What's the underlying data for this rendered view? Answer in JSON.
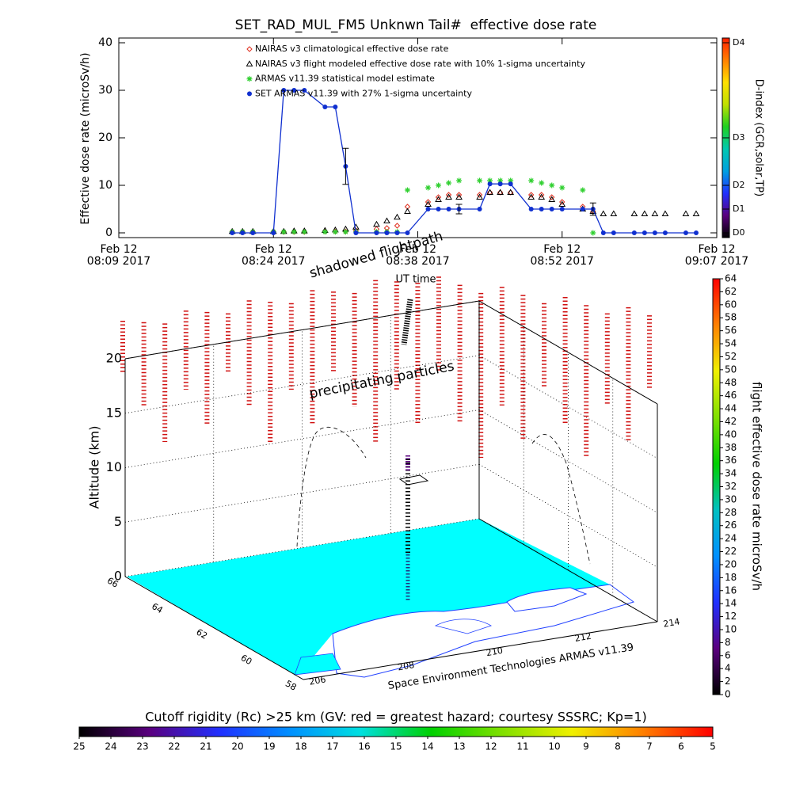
{
  "chart_data": [
    {
      "type": "line",
      "title": "SET_RAD_MUL_FM5 Unknwn Tail#  effective dose rate",
      "ylabel": "Effective dose rate (microSv/h)",
      "xlabel": "UT time",
      "xlim": [
        "2017-02-12 08:09",
        "2017-02-12 09:07"
      ],
      "xticks": [
        {
          "value": "2017-02-12 08:09",
          "label": [
            "Feb 12",
            "08:09 2017"
          ]
        },
        {
          "value": "2017-02-12 08:24",
          "label": [
            "Feb 12",
            "08:24 2017"
          ]
        },
        {
          "value": "2017-02-12 08:38",
          "label": [
            "Feb 12",
            "08:38 2017"
          ]
        },
        {
          "value": "2017-02-12 08:52",
          "label": [
            "Feb 12",
            "08:52 2017"
          ]
        },
        {
          "value": "2017-02-12 09:07",
          "label": [
            "Feb 12",
            "09:07 2017"
          ]
        }
      ],
      "ylim": [
        -1,
        41
      ],
      "yticks": [
        0,
        10,
        20,
        30,
        40
      ],
      "x": [
        "2017-02-12 08:20",
        "2017-02-12 08:21",
        "2017-02-12 08:22",
        "2017-02-12 08:24",
        "2017-02-12 08:25",
        "2017-02-12 08:26",
        "2017-02-12 08:27",
        "2017-02-12 08:29",
        "2017-02-12 08:30",
        "2017-02-12 08:31",
        "2017-02-12 08:32",
        "2017-02-12 08:34",
        "2017-02-12 08:35",
        "2017-02-12 08:36",
        "2017-02-12 08:37",
        "2017-02-12 08:39",
        "2017-02-12 08:40",
        "2017-02-12 08:41",
        "2017-02-12 08:42",
        "2017-02-12 08:44",
        "2017-02-12 08:45",
        "2017-02-12 08:46",
        "2017-02-12 08:47",
        "2017-02-12 08:49",
        "2017-02-12 08:50",
        "2017-02-12 08:51",
        "2017-02-12 08:52",
        "2017-02-12 08:54",
        "2017-02-12 08:55",
        "2017-02-12 08:56",
        "2017-02-12 08:57",
        "2017-02-12 08:59",
        "2017-02-12 09:00",
        "2017-02-12 09:01",
        "2017-02-12 09:02",
        "2017-02-12 09:04",
        "2017-02-12 09:05"
      ],
      "series": [
        {
          "name": "NAIRAS v3 climatological effective dose rate",
          "color": "#e03020",
          "marker": "diamond",
          "values": [
            0.2,
            0.2,
            0.2,
            0.2,
            0.2,
            0.2,
            0.2,
            0.3,
            0.3,
            0.3,
            0.5,
            0.8,
            1,
            1.5,
            5.5,
            6.5,
            7.5,
            8,
            8,
            8,
            8.5,
            8.5,
            8.5,
            8,
            8,
            7.5,
            6.5,
            5.5,
            4.5,
            null,
            null,
            null,
            null,
            null,
            null,
            null,
            null
          ]
        },
        {
          "name": "NAIRAS v3 flight modeled effective dose rate with 10% 1-sigma uncertainty",
          "color": "#000000",
          "marker": "triangle",
          "values": [
            0.3,
            0.3,
            0.3,
            0.3,
            0.3,
            0.4,
            0.4,
            0.5,
            0.6,
            0.8,
            1.2,
            1.8,
            2.5,
            3.3,
            4.5,
            6,
            7,
            7.5,
            7.5,
            7.5,
            8.5,
            8.5,
            8.5,
            7.5,
            7.5,
            7,
            6,
            5,
            4.5,
            4,
            4,
            4,
            4,
            4,
            4,
            4,
            4
          ]
        },
        {
          "name": "ARMAS v11.39 statistical model estimate",
          "color": "#30d030",
          "marker": "star",
          "values": [
            0.2,
            0.2,
            0.2,
            0.2,
            0.2,
            0.2,
            0.2,
            0.2,
            0.2,
            0.2,
            0.2,
            0.2,
            0.2,
            0.2,
            9,
            9.5,
            10,
            10.5,
            11,
            11,
            11,
            11,
            11,
            11,
            10.5,
            10,
            9.5,
            9,
            0,
            null,
            null,
            null,
            null,
            null,
            null,
            null,
            null
          ]
        },
        {
          "name": "SET ARMAS v11.39 with 27% 1-sigma uncertainty",
          "color": "#1030d0",
          "marker": "circle",
          "line": true,
          "values": [
            0,
            0,
            0,
            0,
            30,
            30,
            30,
            26.5,
            26.5,
            14,
            0,
            0,
            0,
            0,
            0,
            5,
            5,
            5,
            5,
            5,
            10.3,
            10.3,
            10.3,
            5,
            5,
            5,
            5,
            5,
            5,
            0,
            0,
            0,
            0,
            0,
            0,
            0,
            0
          ],
          "errors": [
            null,
            null,
            null,
            null,
            null,
            null,
            null,
            null,
            null,
            3.8,
            null,
            null,
            null,
            null,
            null,
            null,
            null,
            null,
            1,
            null,
            null,
            null,
            null,
            null,
            null,
            null,
            null,
            null,
            1.3,
            null,
            null,
            null,
            null,
            null,
            null,
            null,
            null
          ]
        }
      ],
      "colorbar": {
        "label": "D-index (GCR,solar,TP)",
        "ticks": [
          {
            "value": 0,
            "label": "D0"
          },
          {
            "value": 5,
            "label": "D1"
          },
          {
            "value": 10,
            "label": "D2"
          },
          {
            "value": 20,
            "label": "D3"
          },
          {
            "value": 40,
            "label": "D4"
          }
        ],
        "colors": [
          "#000000",
          "#5a007f",
          "#2030ff",
          "#00a0e0",
          "#00c8b0",
          "#20d020",
          "#c0e000",
          "#ffe000",
          "#ff8000",
          "#ff2000"
        ]
      }
    },
    {
      "type": "surface3d",
      "subtitle": "Space Environment Technologies ARMAS v11.39",
      "zlabel": "Altitude (km)",
      "annotations": [
        "shadowed flightpath",
        "precipitating particles"
      ],
      "xlim": [
        206,
        214
      ],
      "xticks": [
        206,
        208,
        210,
        212,
        214
      ],
      "ylim": [
        58,
        66
      ],
      "yticks": [
        58,
        60,
        62,
        64,
        66
      ],
      "zlim": [
        0,
        20
      ],
      "zticks": [
        0,
        5,
        10,
        15,
        20
      ]
    },
    {
      "type": "colorbar",
      "orientation": "vertical",
      "label": "flight effective dose rate microSv/h",
      "lim": [
        0,
        64
      ],
      "ticks": [
        0,
        2,
        4,
        6,
        8,
        10,
        12,
        14,
        16,
        18,
        20,
        22,
        24,
        26,
        28,
        30,
        32,
        34,
        36,
        38,
        40,
        42,
        44,
        46,
        48,
        50,
        52,
        54,
        56,
        58,
        60,
        62,
        64
      ],
      "colors": [
        "#000000",
        "#5a007f",
        "#2030ff",
        "#0090ff",
        "#00c0c0",
        "#00d000",
        "#80e000",
        "#f0f000",
        "#ff8000",
        "#ff0000"
      ]
    },
    {
      "type": "colorbar",
      "orientation": "horizontal",
      "label": "Cutoff rigidity (Rc) >25 km (GV: red = greatest hazard; courtesy SSSRC; Kp=1)",
      "lim": [
        25,
        5
      ],
      "ticks": [
        25,
        24,
        23,
        22,
        21,
        20,
        19,
        18,
        17,
        16,
        15,
        14,
        13,
        12,
        11,
        10,
        9,
        8,
        7,
        6,
        5
      ],
      "colors": [
        "#000000",
        "#5a007f",
        "#2030ff",
        "#0090ff",
        "#00e0e0",
        "#00d000",
        "#80e000",
        "#f0f000",
        "#ff8000",
        "#ff0000"
      ]
    }
  ]
}
